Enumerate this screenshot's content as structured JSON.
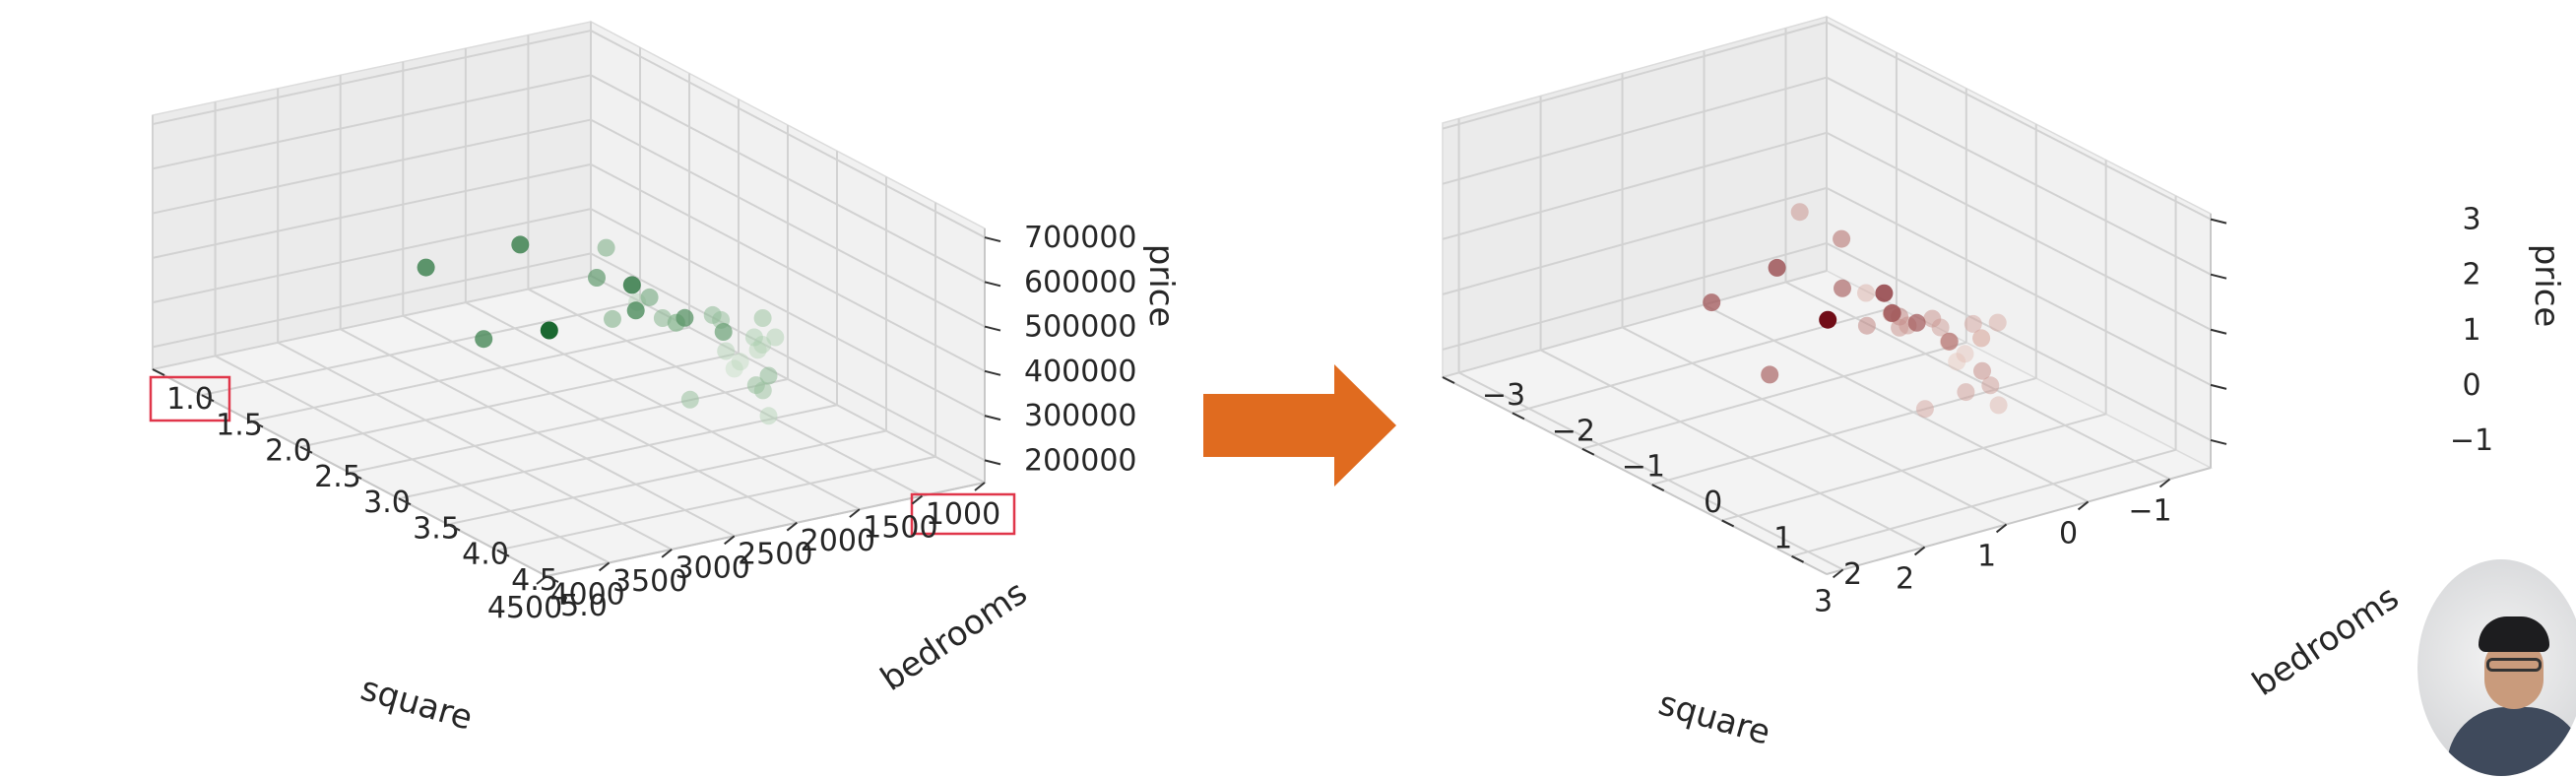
{
  "chart_data": [
    {
      "type": "scatter3d",
      "title": "",
      "xlabel": "square",
      "ylabel": "bedrooms",
      "zlabel": "price",
      "xlim": [
        1000,
        4500
      ],
      "ylim": [
        1.0,
        5.0
      ],
      "zlim": [
        150000,
        720000
      ],
      "x_ticks": [
        "1000",
        "1500",
        "2000",
        "2500",
        "3000",
        "3500",
        "4000",
        "4500"
      ],
      "y_ticks": [
        "1.0",
        "1.5",
        "2.0",
        "2.5",
        "3.0",
        "3.5",
        "4.0",
        "4.5",
        "5.0"
      ],
      "z_ticks": [
        "200000",
        "300000",
        "400000",
        "500000",
        "600000",
        "700000"
      ],
      "highlighted_ticks": [
        "1000",
        "1.0"
      ],
      "colormap": "Greens",
      "grid": true,
      "points": [
        {
          "x": 4478,
          "y": 5,
          "z": 699900
        },
        {
          "x": 3890,
          "y": 3,
          "z": 573900
        },
        {
          "x": 4215,
          "y": 4,
          "z": 549000
        },
        {
          "x": 3031,
          "y": 4,
          "z": 599000
        },
        {
          "x": 3137,
          "y": 3,
          "z": 579900
        },
        {
          "x": 2609,
          "y": 4,
          "z": 499998
        },
        {
          "x": 2567,
          "y": 4,
          "z": 314000
        },
        {
          "x": 1940,
          "y": 4,
          "z": 329999
        },
        {
          "x": 3000,
          "y": 4,
          "z": 539900
        },
        {
          "x": 2526,
          "y": 3,
          "z": 469000
        },
        {
          "x": 2040,
          "y": 4,
          "z": 314900
        },
        {
          "x": 1890,
          "y": 3,
          "z": 329999
        },
        {
          "x": 2300,
          "y": 4,
          "z": 449900
        },
        {
          "x": 2104,
          "y": 3,
          "z": 399900
        },
        {
          "x": 2400,
          "y": 3,
          "z": 369000
        },
        {
          "x": 1985,
          "y": 4,
          "z": 299900
        },
        {
          "x": 1600,
          "y": 3,
          "z": 329900
        },
        {
          "x": 1534,
          "y": 3,
          "z": 314900
        },
        {
          "x": 1427,
          "y": 3,
          "z": 198999
        },
        {
          "x": 1380,
          "y": 3,
          "z": 212000
        },
        {
          "x": 1494,
          "y": 3,
          "z": 242500
        },
        {
          "x": 1940,
          "y": 4,
          "z": 239999
        },
        {
          "x": 2000,
          "y": 3,
          "z": 347000
        },
        {
          "x": 1890,
          "y": 3,
          "z": 329999
        },
        {
          "x": 1416,
          "y": 2,
          "z": 232000
        },
        {
          "x": 1268,
          "y": 3,
          "z": 259900
        },
        {
          "x": 1239,
          "y": 3,
          "z": 229900
        },
        {
          "x": 1100,
          "y": 3,
          "z": 249900
        },
        {
          "x": 1664,
          "y": 2,
          "z": 368500
        },
        {
          "x": 1203,
          "y": 3,
          "z": 239500
        },
        {
          "x": 1200,
          "y": 3,
          "z": 299000
        }
      ]
    },
    {
      "type": "scatter3d",
      "title": "",
      "xlabel": "square",
      "ylabel": "bedrooms",
      "zlabel": "price",
      "xlim": [
        -1.5,
        3.2
      ],
      "ylim": [
        -3,
        2.5
      ],
      "zlim": [
        -1.5,
        3.1
      ],
      "x_ticks": [
        "−1",
        "0",
        "1",
        "2",
        "3"
      ],
      "y_ticks": [
        "−3",
        "−2",
        "−1",
        "0",
        "1",
        "2"
      ],
      "z_ticks": [
        "−1",
        "0",
        "1",
        "2",
        "3"
      ],
      "colormap": "Reds",
      "grid": true,
      "points": [
        {
          "x": 3.1,
          "y": 2.4,
          "z": 3.0
        },
        {
          "x": 2.3,
          "y": -0.2,
          "z": 1.3
        },
        {
          "x": 2.7,
          "y": 1.1,
          "z": 1.0
        },
        {
          "x": 1.3,
          "y": 1.1,
          "z": 1.9
        },
        {
          "x": 1.5,
          "y": -0.2,
          "z": 1.6
        },
        {
          "x": 0.9,
          "y": 1.1,
          "z": 1.2
        },
        {
          "x": 0.8,
          "y": 1.1,
          "z": -0.4
        },
        {
          "x": 0.1,
          "y": 1.1,
          "z": 0.0
        },
        {
          "x": 1.2,
          "y": 1.1,
          "z": 1.5
        },
        {
          "x": 0.7,
          "y": -0.2,
          "z": 0.9
        },
        {
          "x": 0.3,
          "y": 1.1,
          "z": -0.3
        },
        {
          "x": 0.0,
          "y": -0.2,
          "z": -0.1
        },
        {
          "x": 0.5,
          "y": 1.1,
          "z": 0.7
        },
        {
          "x": 0.1,
          "y": -0.2,
          "z": 0.2
        },
        {
          "x": 0.4,
          "y": -0.2,
          "z": 0.1
        },
        {
          "x": 0.0,
          "y": 1.1,
          "z": -0.3
        },
        {
          "x": -0.4,
          "y": -0.2,
          "z": -0.1
        },
        {
          "x": -0.5,
          "y": -0.2,
          "z": -0.3
        },
        {
          "x": -0.7,
          "y": -0.2,
          "z": -1.0
        },
        {
          "x": -0.8,
          "y": -0.2,
          "z": -0.9
        },
        {
          "x": -0.6,
          "y": -0.2,
          "z": -0.6
        },
        {
          "x": -0.1,
          "y": 1.1,
          "z": -0.7
        },
        {
          "x": 0.0,
          "y": -0.2,
          "z": 0.1
        },
        {
          "x": -0.1,
          "y": -0.2,
          "z": -0.1
        },
        {
          "x": -0.7,
          "y": -1.5,
          "z": -0.6
        },
        {
          "x": -0.9,
          "y": -0.2,
          "z": -0.4
        },
        {
          "x": -1.0,
          "y": -0.2,
          "z": -0.7
        },
        {
          "x": -1.2,
          "y": -0.2,
          "z": -0.5
        },
        {
          "x": -0.4,
          "y": -1.5,
          "z": 0.5
        },
        {
          "x": -1.0,
          "y": -0.2,
          "z": -0.7
        },
        {
          "x": -1.0,
          "y": -2.8,
          "z": -0.1
        }
      ]
    }
  ],
  "colors": {
    "arrow": "#e06b1f",
    "pane": "#ececec",
    "grid": "#d2d2d2",
    "highlight_box": "#e0364a"
  },
  "icons": [
    "right-arrow-icon",
    "webcam-presenter-icon"
  ]
}
